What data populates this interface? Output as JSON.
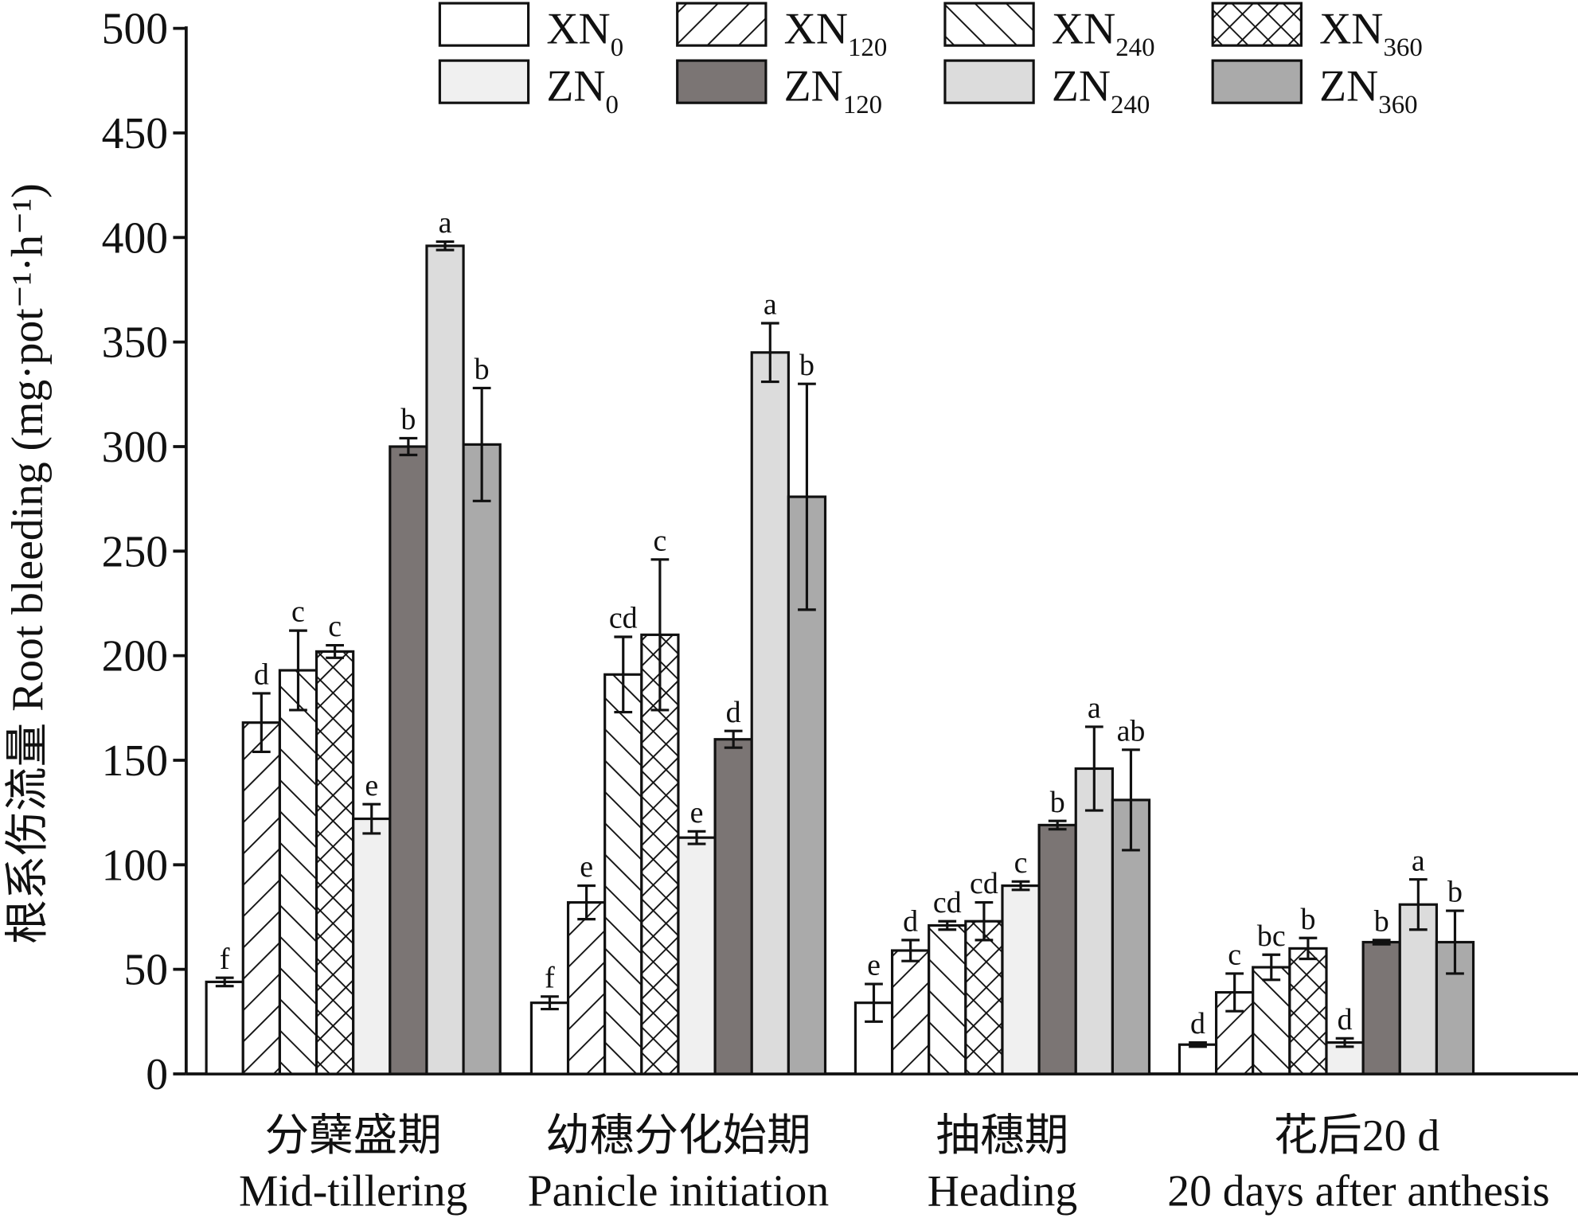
{
  "chart_data": {
    "type": "bar",
    "title": "",
    "ylabel": "根系伤流量 Root bleeding (mg·pot⁻¹·h⁻¹)",
    "ylim": [
      0,
      500
    ],
    "yticks": [
      0,
      50,
      100,
      150,
      200,
      250,
      300,
      350,
      400,
      450,
      500
    ],
    "legend_position": "top-right",
    "categories": [
      {
        "cn": "分蘖盛期",
        "en": "Mid-tillering"
      },
      {
        "cn": "幼穗分化始期",
        "en": "Panicle initiation"
      },
      {
        "cn": "抽穗期",
        "en": "Heading"
      },
      {
        "cn": "花后20 d",
        "en": "20 days after anthesis"
      }
    ],
    "series": [
      {
        "base": "XN",
        "sub": "0",
        "fill": "white",
        "values": [
          44,
          34,
          34,
          14
        ],
        "errors": [
          2,
          3,
          9,
          1
        ],
        "letters": [
          "f",
          "f",
          "e",
          "d"
        ]
      },
      {
        "base": "XN",
        "sub": "120",
        "fill": "fwd",
        "values": [
          168,
          82,
          59,
          39
        ],
        "errors": [
          14,
          8,
          5,
          9
        ],
        "letters": [
          "d",
          "e",
          "d",
          "c"
        ]
      },
      {
        "base": "XN",
        "sub": "240",
        "fill": "back",
        "values": [
          193,
          191,
          71,
          51
        ],
        "errors": [
          19,
          18,
          2,
          6
        ],
        "letters": [
          "c",
          "cd",
          "cd",
          "bc"
        ]
      },
      {
        "base": "XN",
        "sub": "360",
        "fill": "cross",
        "values": [
          202,
          210,
          73,
          60
        ],
        "errors": [
          3,
          36,
          9,
          5
        ],
        "letters": [
          "c",
          "c",
          "cd",
          "b"
        ]
      },
      {
        "base": "ZN",
        "sub": "0",
        "fill": "#f0f0f0",
        "values": [
          122,
          113,
          90,
          15
        ],
        "errors": [
          7,
          3,
          2,
          2
        ],
        "letters": [
          "e",
          "e",
          "c",
          "d"
        ]
      },
      {
        "base": "ZN",
        "sub": "120",
        "fill": "#7b7574",
        "values": [
          300,
          160,
          119,
          63
        ],
        "errors": [
          4,
          4,
          2,
          1
        ],
        "letters": [
          "b",
          "d",
          "b",
          "b"
        ]
      },
      {
        "base": "ZN",
        "sub": "240",
        "fill": "#dcdcdc",
        "values": [
          396,
          345,
          146,
          81
        ],
        "errors": [
          2,
          14,
          20,
          12
        ],
        "letters": [
          "a",
          "a",
          "a",
          "a"
        ]
      },
      {
        "base": "ZN",
        "sub": "360",
        "fill": "#aaaaaa",
        "values": [
          301,
          276,
          131,
          63
        ],
        "errors": [
          27,
          54,
          24,
          15
        ],
        "letters": [
          "b",
          "b",
          "ab",
          "b"
        ]
      }
    ]
  }
}
